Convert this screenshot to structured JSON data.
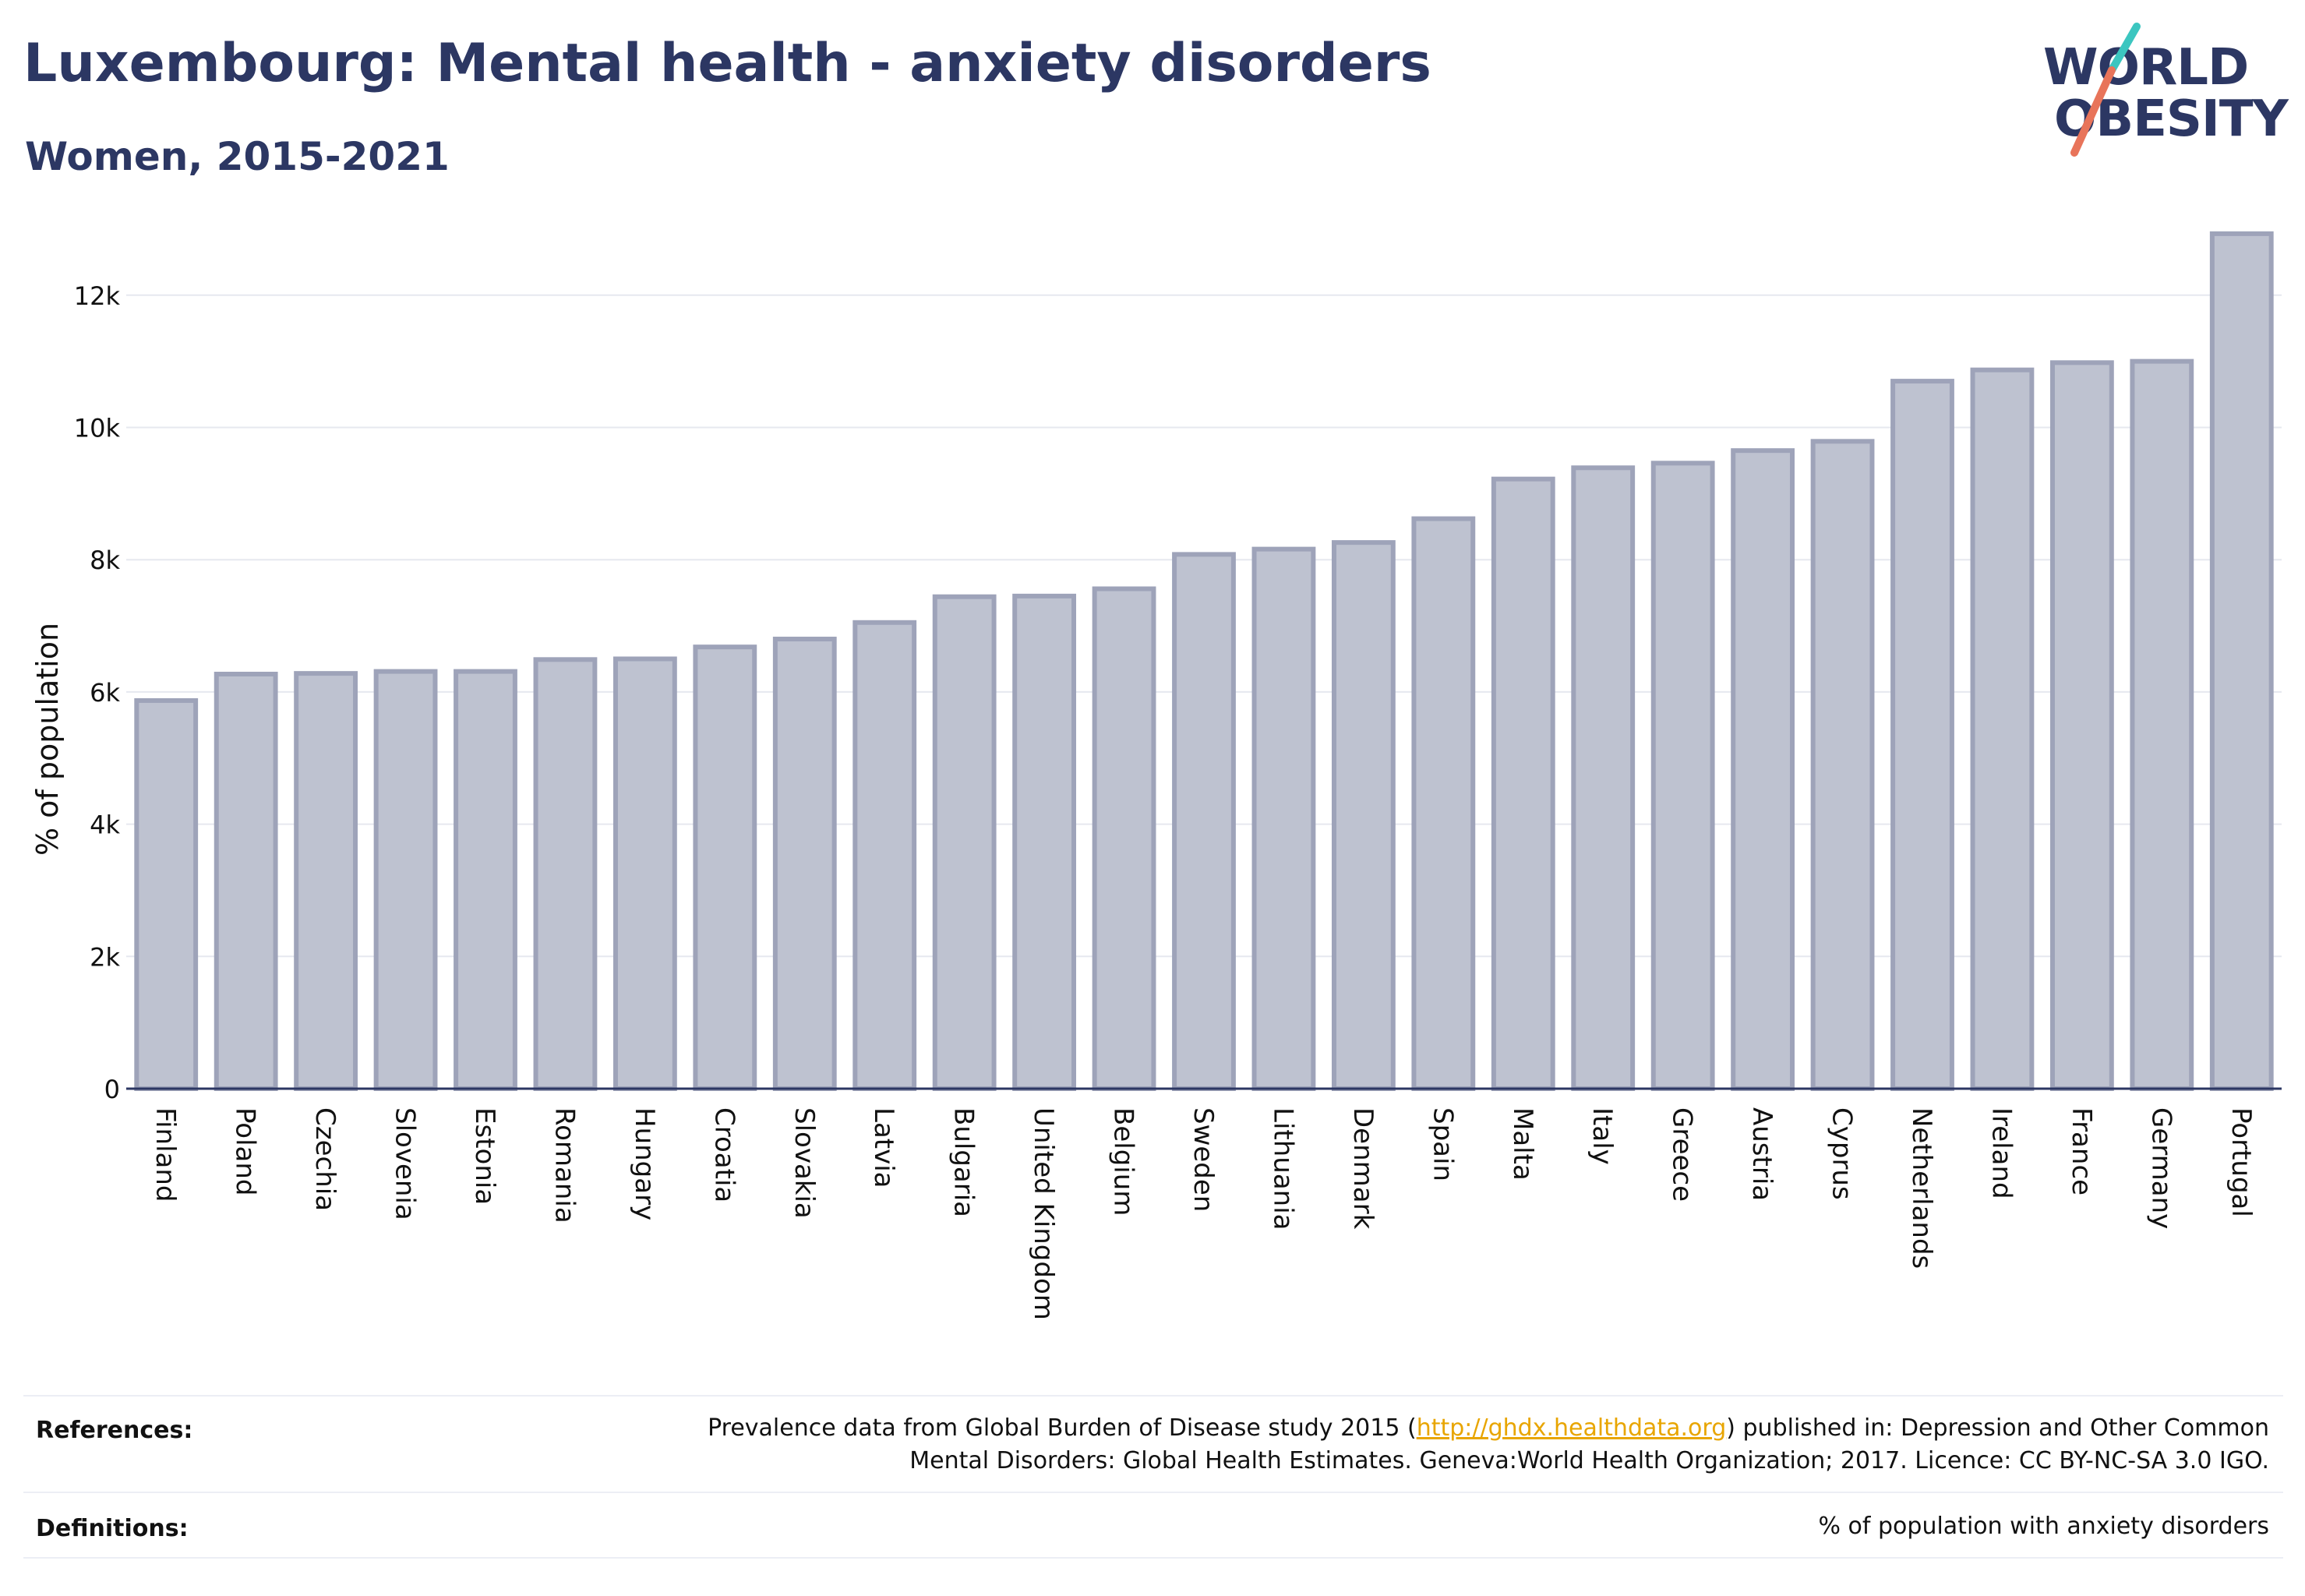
{
  "header": {
    "title": "Luxembourg: Mental health - anxiety disorders",
    "subtitle": "Women, 2015-2021"
  },
  "logo": {
    "line1": "WORLD",
    "line2": "OBESITY",
    "colors": {
      "text": "#2c3763",
      "slash_top": "#3cc6c0",
      "slash_bottom": "#e8745a"
    }
  },
  "chart_data": {
    "type": "bar",
    "ylabel": "% of population",
    "xlabel": "",
    "ylim": [
      0,
      13400
    ],
    "yticks": [
      0,
      2000,
      4000,
      6000,
      8000,
      10000,
      12000
    ],
    "ytick_labels": [
      "0",
      "2k",
      "4k",
      "6k",
      "8k",
      "10k",
      "12k"
    ],
    "grid": true,
    "categories": [
      "Finland",
      "Poland",
      "Czechia",
      "Slovenia",
      "Estonia",
      "Romania",
      "Hungary",
      "Croatia",
      "Slovakia",
      "Latvia",
      "Bulgaria",
      "United Kingdom",
      "Belgium",
      "Sweden",
      "Lithuania",
      "Denmark",
      "Spain",
      "Malta",
      "Italy",
      "Greece",
      "Austria",
      "Cyprus",
      "Netherlands",
      "Ireland",
      "France",
      "Germany",
      "Portugal"
    ],
    "values": [
      5870,
      6270,
      6280,
      6310,
      6310,
      6490,
      6500,
      6680,
      6800,
      7050,
      7440,
      7450,
      7560,
      8080,
      8160,
      8260,
      8620,
      9220,
      9390,
      9460,
      9650,
      9790,
      10700,
      10870,
      10980,
      11000,
      12930
    ],
    "colors": {
      "bar_fill": "#bec2d0",
      "bar_stroke": "#9ea3b9",
      "axis": "#2c3763",
      "grid": "#e6e8ef"
    }
  },
  "footer": {
    "references_label": "References:",
    "references_before_link": "Prevalence data from Global Burden of Disease study 2015 (",
    "references_link": "http://ghdx.healthdata.org",
    "references_after_link": ") published in: Depression and Other Common",
    "references_line2": "Mental Disorders: Global Health Estimates. Geneva:World Health Organization; 2017. Licence: CC BY-NC-SA 3.0 IGO.",
    "definitions_label": "Definitions:",
    "definitions_text": "% of population with anxiety disorders"
  }
}
